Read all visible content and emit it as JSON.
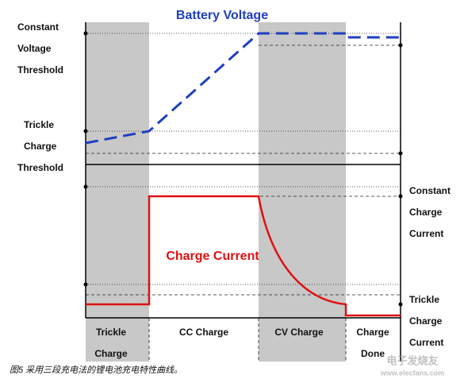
{
  "title": "Battery Voltage",
  "current_label": "Charge Current",
  "left_labels": {
    "voltage_threshold": [
      "Constant",
      "Voltage",
      "Threshold"
    ],
    "trickle_threshold": [
      "Trickle",
      "Charge",
      "Threshold"
    ]
  },
  "right_labels": {
    "constant_current": [
      "Constant",
      "Charge",
      "Current"
    ],
    "trickle_current": [
      "Trickle",
      "Charge",
      "Current"
    ]
  },
  "phases": [
    [
      "Trickle",
      "Charge"
    ],
    [
      "CC Charge"
    ],
    [
      "CV Charge"
    ],
    [
      "Charge",
      "Done"
    ]
  ],
  "caption": "图5 采用三段充电法的锂电池充电特性曲线。",
  "watermark": [
    "电子发烧友",
    "www.elecfans.com"
  ]
}
